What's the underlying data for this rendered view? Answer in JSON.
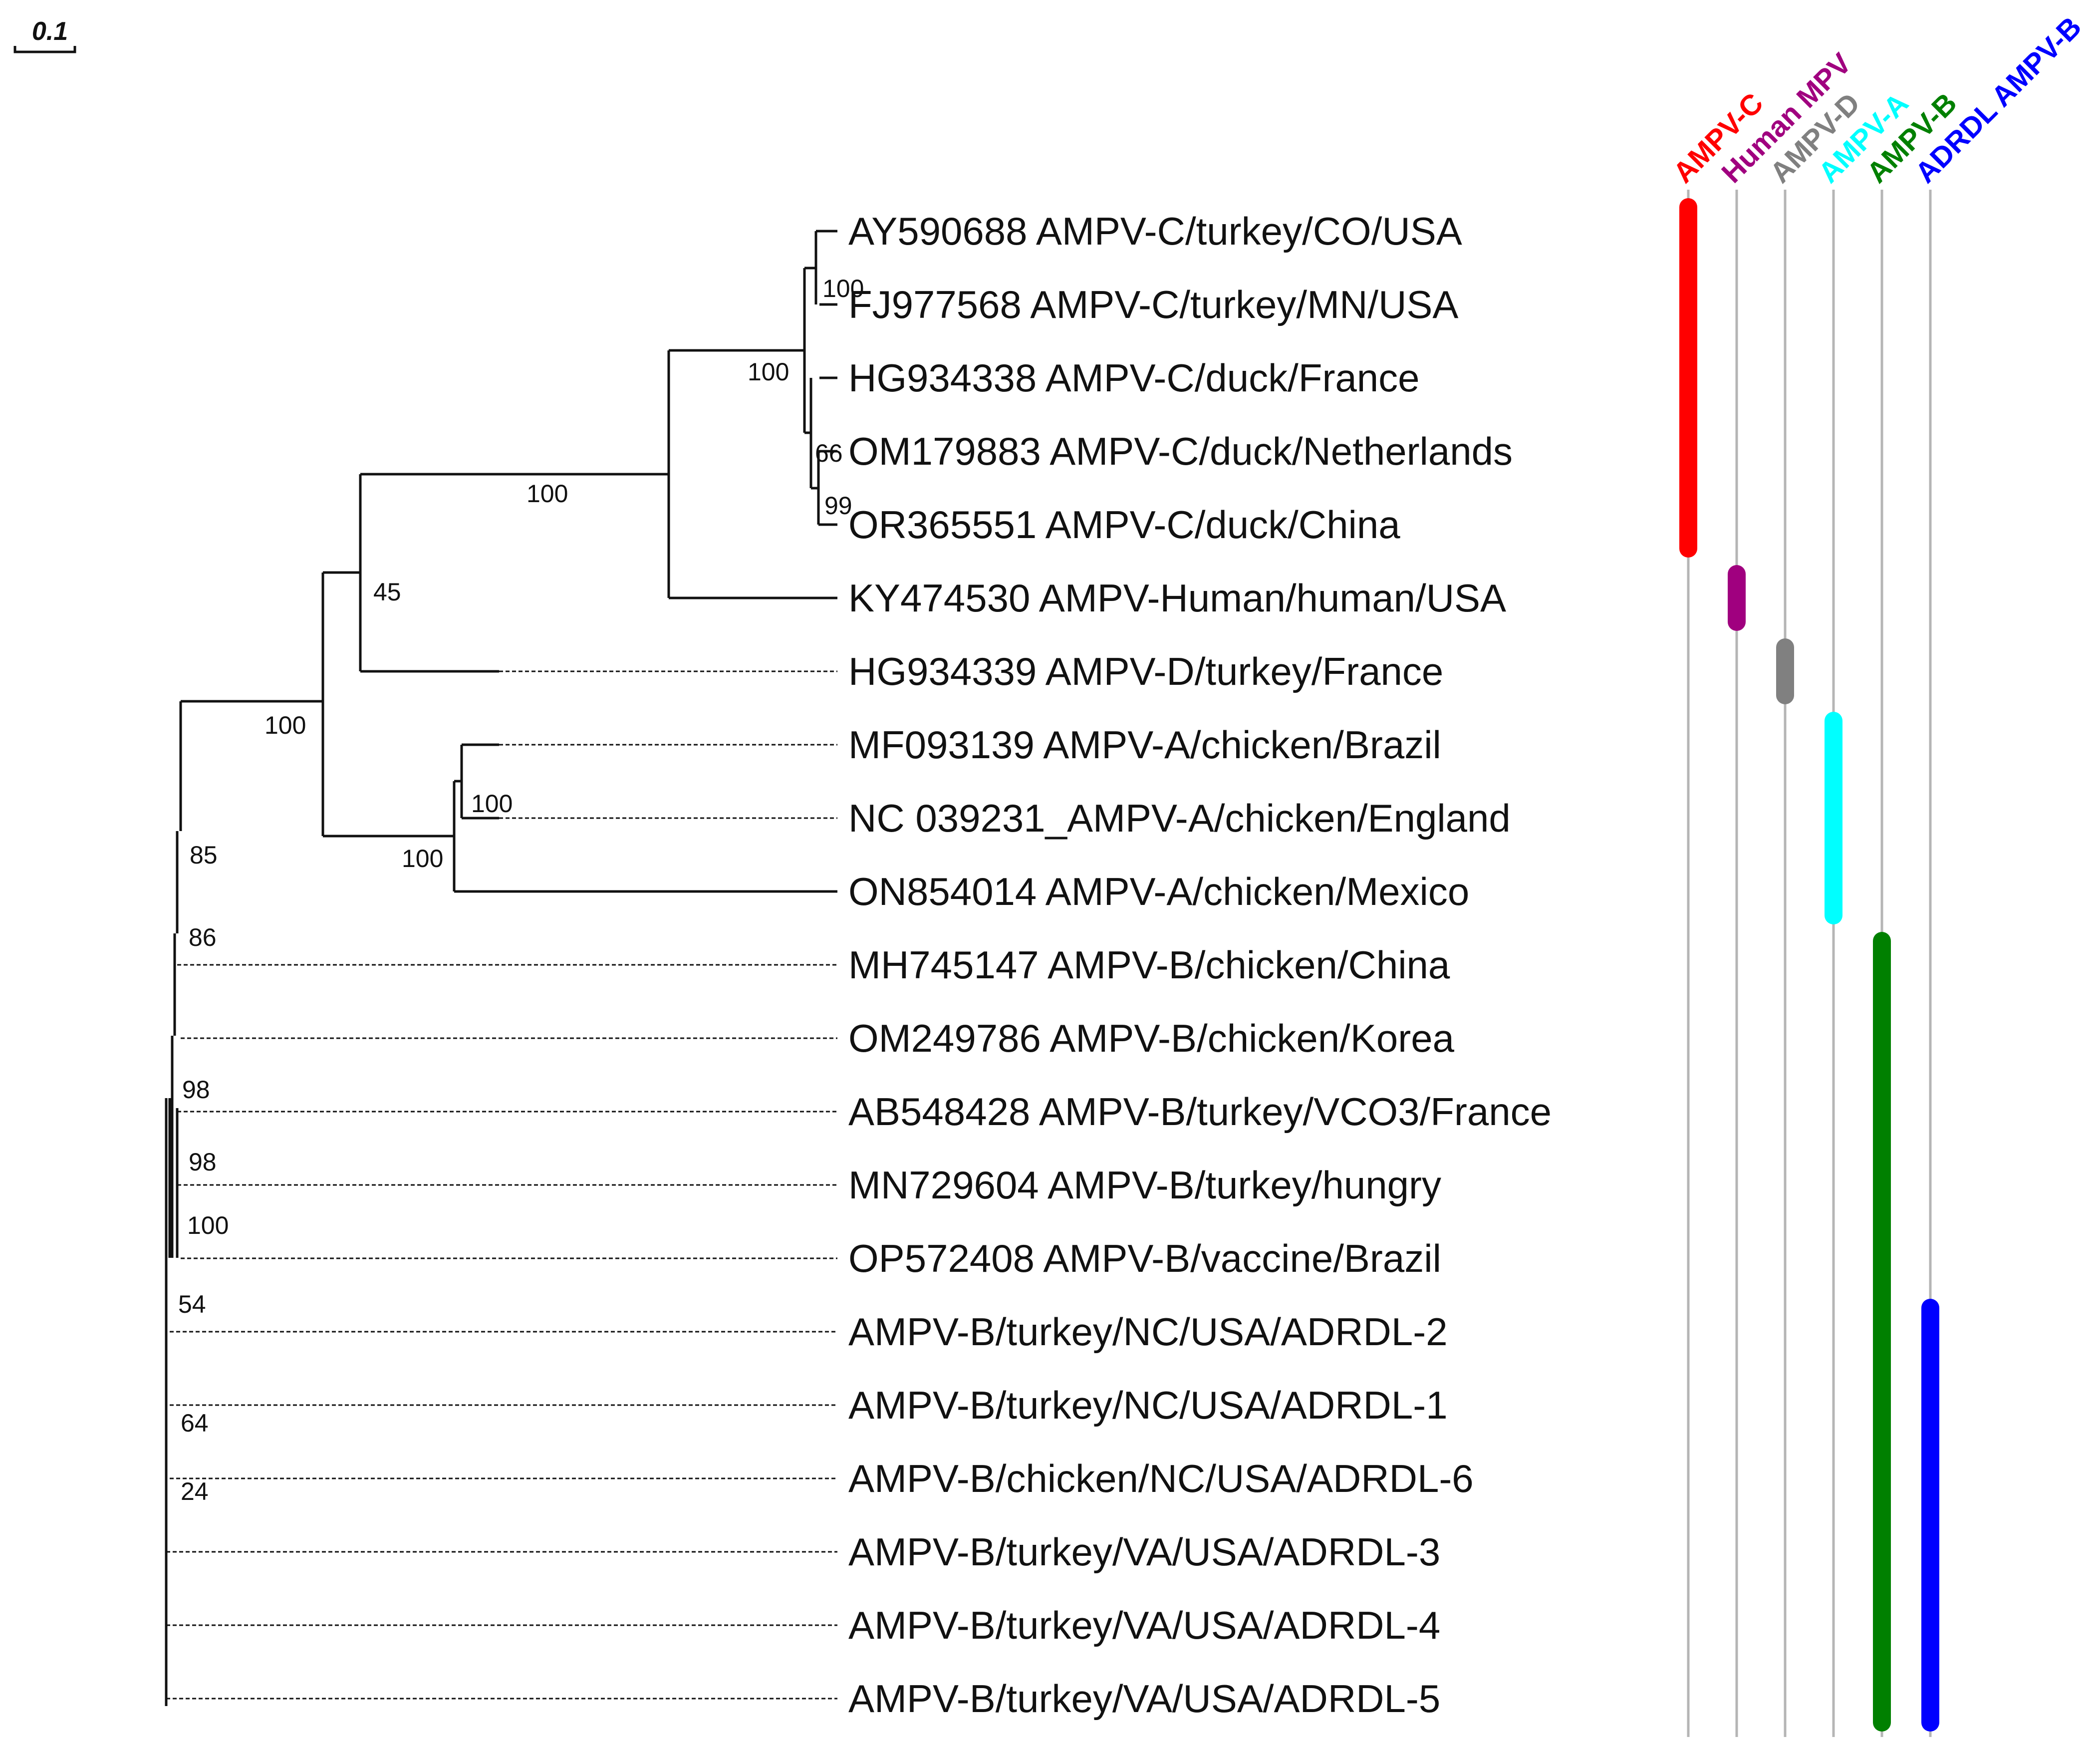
{
  "scale_bar": {
    "label": "0.1"
  },
  "taxa": [
    "AY590688 AMPV-C/turkey/CO/USA",
    "FJ977568 AMPV-C/turkey/MN/USA",
    "HG934338 AMPV-C/duck/France",
    "OM179883 AMPV-C/duck/Netherlands",
    "OR365551 AMPV-C/duck/China",
    "KY474530 AMPV-Human/human/USA",
    "HG934339 AMPV-D/turkey/France",
    "MF093139 AMPV-A/chicken/Brazil",
    "NC 039231_AMPV-A/chicken/England",
    "ON854014 AMPV-A/chicken/Mexico",
    "MH745147 AMPV-B/chicken/China",
    "OM249786 AMPV-B/chicken/Korea",
    "AB548428 AMPV-B/turkey/VCO3/France",
    "MN729604 AMPV-B/turkey/hungry",
    "OP572408 AMPV-B/vaccine/Brazil",
    "AMPV-B/turkey/NC/USA/ADRDL-2",
    "AMPV-B/turkey/NC/USA/ADRDL-1",
    "AMPV-B/chicken/NC/USA/ADRDL-6",
    "AMPV-B/turkey/VA/USA/ADRDL-3",
    "AMPV-B/turkey/VA/USA/ADRDL-4",
    "AMPV-B/turkey/VA/USA/ADRDL-5"
  ],
  "support_values": {
    "fj_ay": "100",
    "c_clade": "100",
    "om_or": "66",
    "or": "99",
    "c_human": "100",
    "c_human_d": "45",
    "a_clade_inner": "100",
    "a_clade": "100",
    "non_b": "100",
    "n85": "85",
    "n86": "86",
    "n98a": "98",
    "n98b": "98",
    "n100b": "100",
    "n54": "54",
    "n64": "64",
    "n24": "24"
  },
  "clades": [
    {
      "label": "AMPV-C",
      "color": "#ff0000",
      "from": 1,
      "to": 5
    },
    {
      "label": "Human MPV",
      "color": "#a0007f",
      "from": 6,
      "to": 6
    },
    {
      "label": "AMPV-D",
      "color": "#808080",
      "from": 7,
      "to": 7
    },
    {
      "label": "AMPV-A",
      "color": "#00ffff",
      "from": 8,
      "to": 10
    },
    {
      "label": "AMPV-B",
      "color": "#008000",
      "from": 11,
      "to": 21
    },
    {
      "label": "ADRDL AMPV-B",
      "color": "#0000ff",
      "from": 16,
      "to": 21
    }
  ]
}
